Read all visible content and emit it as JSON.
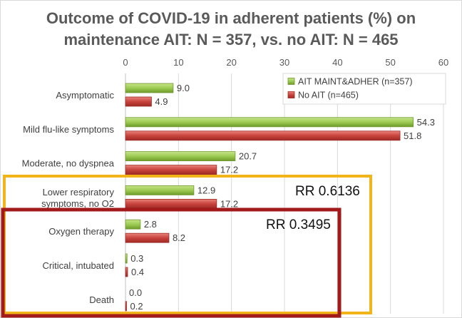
{
  "chart_data": {
    "type": "bar",
    "orientation": "horizontal",
    "title": "Outcome of COVID-19 in adherent patients (%) on",
    "subtitle": "maintenance AIT: N = 357, vs. no AIT: N = 465",
    "categories": [
      "Asymptomatic",
      "Mild flu-like symptoms",
      "Moderate, no dyspnea",
      "Lower respiratory|symptoms, no O2",
      "Oxygen therapy",
      "Critical, intubated",
      "Death"
    ],
    "series": [
      {
        "name": "AIT MAINT&ADHER (n=357)",
        "color": "#8fb944",
        "values": [
          9.0,
          54.3,
          20.7,
          12.9,
          2.8,
          0.3,
          0.0
        ],
        "labels": [
          "9.0",
          "54.3",
          "20.7",
          "12.9",
          "2.8",
          "0.3",
          "0.0"
        ]
      },
      {
        "name": "No AIT (n=465)",
        "color": "#c23a34",
        "values": [
          4.9,
          51.8,
          17.2,
          17.2,
          8.2,
          0.4,
          0.2
        ],
        "labels": [
          "4.9",
          "51.8",
          "17.2",
          "17.2",
          "8.2",
          "0.4",
          "0.2"
        ]
      }
    ],
    "xlim": [
      0,
      60
    ],
    "xticks": [
      0,
      10,
      20,
      30,
      40,
      50,
      60
    ],
    "xaxis_position": "top",
    "legend_position": "top-right",
    "annotations": [
      {
        "text": "RR 0.6136",
        "color": "#f2b41b",
        "from_category": 3,
        "to_category": 6
      },
      {
        "text": "RR 0.3495",
        "color": "#a21a1a",
        "from_category": 4,
        "to_category": 6
      }
    ]
  }
}
